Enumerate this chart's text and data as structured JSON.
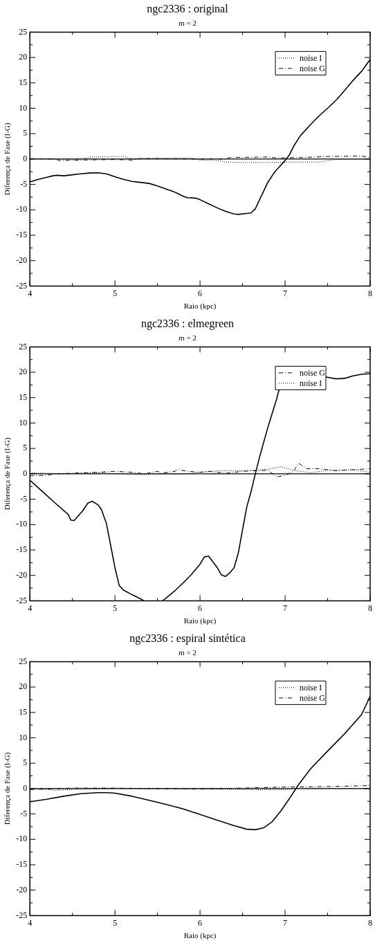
{
  "chart_data": [
    {
      "type": "line",
      "title": "ngc2336 : original",
      "subtitle": "m = 2",
      "xlabel": "Raio (kpc)",
      "ylabel": "Diferença de Fase (I-G)",
      "xlim": [
        4,
        8
      ],
      "ylim": [
        -25,
        25
      ],
      "xticks": [
        4,
        {
          "value": 4.5,
          "label": null
        },
        5,
        {
          "value": 5.5,
          "label": null
        },
        6,
        {
          "value": 6.5,
          "label": null
        },
        7,
        {
          "value": 7.5,
          "label": null
        },
        8
      ],
      "yticks": [
        -25,
        {
          "value": -22.5,
          "label": null
        },
        -20,
        {
          "value": -17.5,
          "label": null
        },
        -15,
        {
          "value": -12.5,
          "label": null
        },
        -10,
        {
          "value": -7.5,
          "label": null
        },
        -5,
        {
          "value": -2.5,
          "label": null
        },
        0,
        {
          "value": 2.5,
          "label": null
        },
        5,
        {
          "value": 7.5,
          "label": null
        },
        10,
        {
          "value": 12.5,
          "label": null
        },
        15,
        {
          "value": 17.5,
          "label": null
        },
        20,
        {
          "value": 22.5,
          "label": null
        },
        25
      ],
      "legend": "top right",
      "marker": "none",
      "ref_lines": [
        {
          "axis": "y",
          "value": 0,
          "color": "#000000",
          "line_style": "solid"
        }
      ],
      "series": [
        {
          "name": "noise I",
          "color": "#000000",
          "line_style": "dotted",
          "x": [
            4.0,
            4.6,
            4.7,
            5.0,
            5.1,
            5.2,
            5.5,
            5.9,
            6.0,
            6.2,
            6.3,
            6.6,
            7.0,
            7.4,
            7.5,
            7.6,
            8.0
          ],
          "values": [
            0,
            0,
            0.4,
            0.5,
            0.5,
            0.1,
            0.2,
            0.2,
            -0.2,
            -0.3,
            -0.6,
            -0.7,
            -0.6,
            -0.6,
            -0.3,
            -0.1,
            0
          ]
        },
        {
          "name": "noise G",
          "color": "#000000",
          "line_style": "dashdot",
          "x": [
            4.0,
            4.3,
            4.35,
            4.6,
            5.0,
            5.2,
            5.3,
            6.0,
            6.3,
            6.35,
            6.8,
            6.9,
            7.2,
            7.5,
            7.9,
            8.0
          ],
          "values": [
            0.1,
            0,
            -0.3,
            -0.2,
            -0.1,
            -0.2,
            0.1,
            0,
            0,
            0.3,
            0.4,
            0.2,
            0.3,
            0.5,
            0.6,
            0.3
          ]
        },
        {
          "color": "#000000",
          "line_style": "solid",
          "x": [
            4.0,
            4.1,
            4.2,
            4.27,
            4.32,
            4.4,
            4.5,
            4.6,
            4.7,
            4.8,
            4.9,
            5.0,
            5.1,
            5.2,
            5.3,
            5.4,
            5.5,
            5.6,
            5.7,
            5.8,
            5.85,
            5.95,
            6.0,
            6.1,
            6.2,
            6.3,
            6.4,
            6.45,
            6.55,
            6.6,
            6.65,
            6.7,
            6.8,
            6.88,
            6.95,
            7.0,
            7.05,
            7.1,
            7.18,
            7.3,
            7.4,
            7.5,
            7.6,
            7.7,
            7.8,
            7.9,
            8.0
          ],
          "values": [
            -4.5,
            -4.0,
            -3.6,
            -3.3,
            -3.2,
            -3.3,
            -3.1,
            -2.9,
            -2.75,
            -2.7,
            -2.9,
            -3.5,
            -4.0,
            -4.4,
            -4.6,
            -4.8,
            -5.3,
            -5.9,
            -6.5,
            -7.3,
            -7.6,
            -7.7,
            -8.0,
            -8.8,
            -9.6,
            -10.3,
            -10.8,
            -10.9,
            -10.7,
            -10.6,
            -9.8,
            -8.0,
            -4.5,
            -2.5,
            -1.2,
            -0.3,
            0.8,
            2.5,
            4.6,
            6.8,
            8.5,
            10.0,
            11.6,
            13.5,
            15.5,
            17.3,
            19.6
          ]
        }
      ]
    },
    {
      "type": "line",
      "title": "ngc2336 : elmegreen",
      "subtitle": "m = 2",
      "xlabel": "Raio (kpc)",
      "ylabel": "Diferença de Fase (I-G)",
      "xlim": [
        4,
        8
      ],
      "ylim": [
        -25,
        25
      ],
      "xticks": [
        4,
        {
          "value": 4.5,
          "label": null
        },
        5,
        {
          "value": 5.5,
          "label": null
        },
        6,
        {
          "value": 6.5,
          "label": null
        },
        7,
        {
          "value": 7.5,
          "label": null
        },
        8
      ],
      "yticks": [
        -25,
        {
          "value": -22.5,
          "label": null
        },
        -20,
        {
          "value": -17.5,
          "label": null
        },
        -15,
        {
          "value": -12.5,
          "label": null
        },
        -10,
        {
          "value": -7.5,
          "label": null
        },
        -5,
        {
          "value": -2.5,
          "label": null
        },
        0,
        {
          "value": 2.5,
          "label": null
        },
        5,
        {
          "value": 7.5,
          "label": null
        },
        10,
        {
          "value": 12.5,
          "label": null
        },
        15,
        {
          "value": 17.5,
          "label": null
        },
        20,
        {
          "value": 22.5,
          "label": null
        },
        25
      ],
      "legend": "top right",
      "marker": "none",
      "ref_lines": [
        {
          "axis": "y",
          "value": 0,
          "color": "#000000",
          "line_style": "solid"
        }
      ],
      "series": [
        {
          "name": "noise G",
          "color": "#000000",
          "line_style": "dashdot",
          "x": [
            4.0,
            4.2,
            4.3,
            4.8,
            5.0,
            5.2,
            5.35,
            5.5,
            5.55,
            5.7,
            5.75,
            5.85,
            6.0,
            6.1,
            6.3,
            6.5,
            6.8,
            6.9,
            7.0,
            7.1,
            7.16,
            7.25,
            7.4,
            7.6,
            8.0
          ],
          "values": [
            -0.4,
            -0.3,
            0,
            0.3,
            0.5,
            0.3,
            0,
            0.5,
            0.1,
            0.5,
            0.8,
            0.5,
            0.3,
            0.5,
            0.1,
            0.5,
            0.7,
            -0.6,
            -0.3,
            0.5,
            2.1,
            1.0,
            1.0,
            0.6,
            1.0
          ]
        },
        {
          "name": "noise I",
          "color": "#000000",
          "line_style": "dotted",
          "x": [
            4.0,
            4.4,
            4.8,
            5.3,
            5.6,
            5.8,
            6.0,
            6.2,
            6.5,
            6.8,
            6.95,
            7.1,
            7.3,
            7.5,
            7.8,
            8.0
          ],
          "values": [
            0.2,
            0,
            0.2,
            -0.2,
            0,
            -0.1,
            0.3,
            0.6,
            0.6,
            0.9,
            1.4,
            0.7,
            0.2,
            0.7,
            0.8,
            0.3
          ]
        },
        {
          "color": "#000000",
          "line_style": "solid",
          "x": [
            4.0,
            4.05,
            4.2,
            4.3,
            4.45,
            4.48,
            4.52,
            4.62,
            4.68,
            4.73,
            4.8,
            4.84,
            4.9,
            4.96,
            5.0,
            5.05,
            5.1,
            5.2,
            5.3,
            5.34,
            5.45,
            5.56,
            5.6,
            5.7,
            5.8,
            5.9,
            6.0,
            6.05,
            6.1,
            6.2,
            6.25,
            6.3,
            6.35,
            6.4,
            6.45,
            6.5,
            6.55,
            6.6,
            6.65,
            6.7,
            6.8,
            6.9,
            6.93,
            7.2,
            7.47,
            7.6,
            7.7,
            7.8,
            7.9,
            8.0
          ],
          "values": [
            -1.3,
            -2,
            -4.3,
            -5.8,
            -8,
            -9.1,
            -9.2,
            -7.3,
            -5.8,
            -5.4,
            -6.1,
            -7.0,
            -9.8,
            -15,
            -18.5,
            -22,
            -22.9,
            -23.8,
            -24.6,
            -25,
            null,
            -25,
            -24.5,
            -23.1,
            -21.5,
            -19.8,
            -17.8,
            -16.4,
            -16.2,
            -18.4,
            -19.9,
            -20.2,
            -19.5,
            -18.5,
            -15.6,
            -11,
            -6.5,
            -3.5,
            0,
            3.3,
            9.3,
            14.7,
            16.6,
            null,
            19.1,
            18.7,
            18.8,
            19.3,
            19.6,
            19.7
          ]
        }
      ]
    },
    {
      "type": "line",
      "title": "ngc2336 : espiral sintética",
      "subtitle": "m = 2",
      "xlabel": "Raio (kpc)",
      "ylabel": "Diferença de Fase (I-G)",
      "xlim": [
        4,
        8
      ],
      "ylim": [
        -25,
        25
      ],
      "xticks": [
        4,
        {
          "value": 4.5,
          "label": null
        },
        5,
        {
          "value": 5.5,
          "label": null
        },
        6,
        {
          "value": 6.5,
          "label": null
        },
        7,
        {
          "value": 7.5,
          "label": null
        },
        8
      ],
      "yticks": [
        -25,
        {
          "value": -22.5,
          "label": null
        },
        -20,
        {
          "value": -17.5,
          "label": null
        },
        -15,
        {
          "value": -12.5,
          "label": null
        },
        -10,
        {
          "value": -7.5,
          "label": null
        },
        -5,
        {
          "value": -2.5,
          "label": null
        },
        0,
        {
          "value": 2.5,
          "label": null
        },
        5,
        {
          "value": 7.5,
          "label": null
        },
        10,
        {
          "value": 12.5,
          "label": null
        },
        15,
        {
          "value": 17.5,
          "label": null
        },
        20,
        {
          "value": 22.5,
          "label": null
        },
        25
      ],
      "legend": "top right",
      "marker": "none",
      "ref_lines": [
        {
          "axis": "y",
          "value": 0,
          "color": "#000000",
          "line_style": "solid"
        }
      ],
      "series": [
        {
          "name": "noise I",
          "color": "#000000",
          "line_style": "dotted",
          "x": [
            4.0,
            4.3,
            4.5,
            5.0,
            6.0,
            6.5,
            7.0,
            7.2,
            8.0
          ],
          "values": [
            0,
            -0.3,
            -0.2,
            0,
            -0.1,
            -0.2,
            -0.2,
            0,
            0
          ]
        },
        {
          "name": "noise G",
          "color": "#000000",
          "line_style": "dashdot",
          "x": [
            4.0,
            4.5,
            5.0,
            6.0,
            6.5,
            7.0,
            7.5,
            8.0
          ],
          "values": [
            -0.2,
            0.1,
            0.1,
            -0.1,
            0.1,
            0.3,
            0.4,
            0.6
          ]
        },
        {
          "color": "#000000",
          "line_style": "solid",
          "x": [
            4.0,
            4.2,
            4.4,
            4.6,
            4.8,
            4.9,
            5.0,
            5.2,
            5.4,
            5.6,
            5.8,
            6.0,
            6.2,
            6.4,
            6.55,
            6.65,
            6.75,
            6.85,
            6.95,
            7.05,
            7.15,
            7.3,
            7.5,
            7.7,
            7.9,
            8.0
          ],
          "values": [
            -2.6,
            -2.1,
            -1.5,
            -1.0,
            -0.8,
            -0.8,
            -0.9,
            -1.5,
            -2.3,
            -3.1,
            -4.0,
            -5.1,
            -6.2,
            -7.3,
            -8.0,
            -8.1,
            -7.7,
            -6.5,
            -4.4,
            -2.0,
            0.6,
            3.9,
            7.4,
            10.8,
            14.6,
            18.2
          ]
        }
      ]
    }
  ]
}
